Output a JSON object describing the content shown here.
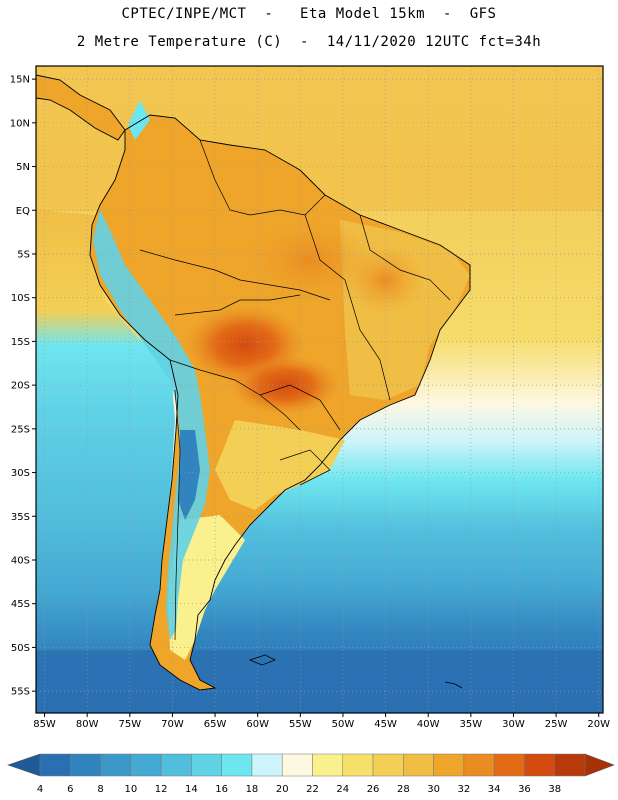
{
  "header": {
    "line1": "CPTEC/INPE/MCT  -   Eta Model 15km  -  GFS",
    "line2": "2 Metre Temperature (C)  -  14/11/2020 12UTC fct=34h"
  },
  "map": {
    "lat_ticks": [
      "15N",
      "10N",
      "5N",
      "EQ",
      "5S",
      "10S",
      "15S",
      "20S",
      "25S",
      "30S",
      "35S",
      "40S",
      "45S",
      "50S",
      "55S"
    ],
    "lat_values": [
      15,
      10,
      5,
      0,
      -5,
      -10,
      -15,
      -20,
      -25,
      -30,
      -35,
      -40,
      -45,
      -50,
      -55
    ],
    "lon_ticks": [
      "85W",
      "80W",
      "75W",
      "70W",
      "65W",
      "60W",
      "55W",
      "50W",
      "45W",
      "40W",
      "35W",
      "30W",
      "25W",
      "20W"
    ],
    "lon_values": [
      -85,
      -80,
      -75,
      -70,
      -65,
      -60,
      -55,
      -50,
      -45,
      -40,
      -35,
      -30,
      -25,
      -20
    ],
    "extent": {
      "lon_min": -86,
      "lon_max": -19.5,
      "lat_min": -57.5,
      "lat_max": 16.5
    }
  },
  "colorbar": {
    "unit": "C",
    "labels": [
      "4",
      "6",
      "8",
      "10",
      "12",
      "14",
      "16",
      "18",
      "20",
      "22",
      "24",
      "26",
      "28",
      "30",
      "32",
      "34",
      "36",
      "38"
    ],
    "colors": [
      "#2a6fb2",
      "#3284bf",
      "#3b98c9",
      "#45aad3",
      "#52bedd",
      "#60d2e6",
      "#6ee6ef",
      "#cdf4fb",
      "#fdf8e0",
      "#fbf08e",
      "#f7e06a",
      "#f4cf55",
      "#f0be45",
      "#eea52a",
      "#ea8c22",
      "#e36b16",
      "#d44b10",
      "#b83a0a"
    ],
    "under_color": "#1f5a9a",
    "over_color": "#a83208"
  },
  "colors": {
    "ocean_cold": "#2a6fb2",
    "ocean_mid": "#45aad3",
    "ocean_warm": "#f4cf55",
    "land_hot": "#e36b16",
    "land_warm": "#eea52a",
    "andes": "#3284bf",
    "patagonia": "#fbf08e"
  }
}
